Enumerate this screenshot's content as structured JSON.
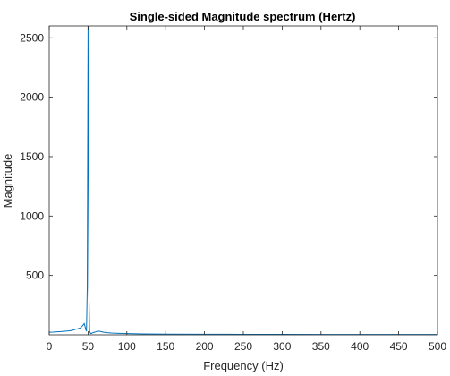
{
  "chart_data": {
    "type": "line",
    "title": "Single-sided Magnitude spectrum (Hertz)",
    "xlabel": "Frequency (Hz)",
    "ylabel": "Magnitude",
    "xlim": [
      0,
      500
    ],
    "ylim": [
      0,
      2600
    ],
    "xticks": [
      0,
      50,
      100,
      150,
      200,
      250,
      300,
      350,
      400,
      450,
      500
    ],
    "xtick_labels": [
      "0",
      "50",
      "100",
      "150",
      "200",
      "250",
      "300",
      "350",
      "400",
      "450",
      "500"
    ],
    "yticks": [
      500,
      1000,
      1500,
      2000,
      2500
    ],
    "ytick_labels": [
      "500",
      "1000",
      "1500",
      "2000",
      "2500"
    ],
    "grid": false,
    "line_color": "#0072bd",
    "series": [
      {
        "x": [
          0,
          5,
          10,
          15,
          20,
          25,
          30,
          33,
          36,
          40,
          42,
          44,
          45,
          46,
          47,
          48,
          49,
          50,
          51,
          52,
          53,
          54,
          55,
          57,
          60,
          63,
          66,
          70,
          75,
          80,
          90,
          100,
          120,
          150,
          200,
          250,
          300,
          350,
          400,
          450,
          500
        ],
        "y": [
          22,
          23,
          25,
          27,
          30,
          33,
          38,
          45,
          50,
          58,
          70,
          85,
          95,
          75,
          45,
          30,
          400,
          2600,
          400,
          30,
          15,
          10,
          14,
          20,
          25,
          32,
          28,
          22,
          18,
          15,
          12,
          10,
          8,
          6,
          5,
          4,
          4,
          3,
          3,
          3,
          3
        ]
      }
    ]
  }
}
